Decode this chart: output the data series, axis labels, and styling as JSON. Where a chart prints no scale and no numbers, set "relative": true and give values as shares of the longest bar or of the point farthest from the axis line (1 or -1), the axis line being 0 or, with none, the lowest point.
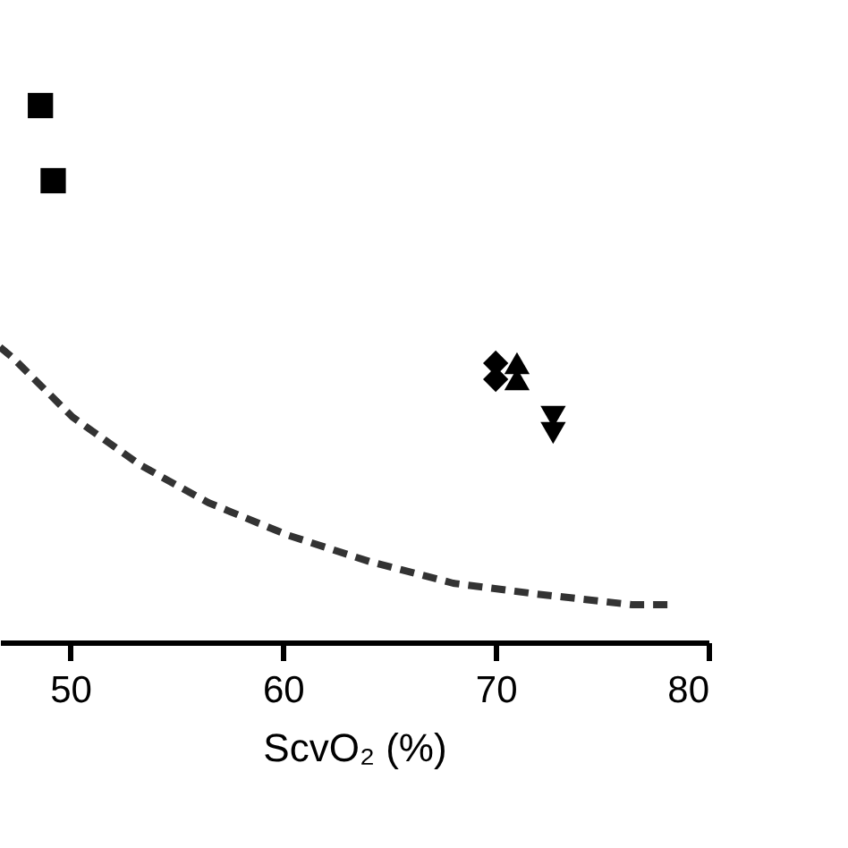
{
  "chart_data": {
    "type": "scatter",
    "xlabel": "ScvO₂ (%)",
    "relative": true,
    "xlim": [
      46.7,
      80
    ],
    "xticks": [
      50,
      60,
      70,
      80
    ],
    "grid": false,
    "series": [
      {
        "marker": "square",
        "color": "#000000",
        "x": [
          48.6,
          49.2
        ],
        "values": [
          1.0,
          0.86
        ]
      },
      {
        "marker": "diamond",
        "color": "#000000",
        "x": [
          70.0,
          70.0
        ],
        "values": [
          0.52,
          0.49
        ]
      },
      {
        "marker": "triangle",
        "color": "#000000",
        "x": [
          71.0,
          71.0
        ],
        "values": [
          0.52,
          0.49
        ]
      },
      {
        "marker": "triangle-down",
        "color": "#000000",
        "x": [
          72.7,
          72.7
        ],
        "values": [
          0.42,
          0.39
        ]
      },
      {
        "type": "line",
        "marker": "none",
        "line_style": "dashed",
        "color": "#333333",
        "x": [
          46.7,
          47.3,
          50.1,
          53.3,
          56.5,
          60.2,
          64.1,
          68.0,
          71.9,
          76.4,
          78.4
        ],
        "values": [
          0.55,
          0.53,
          0.42,
          0.33,
          0.26,
          0.2,
          0.15,
          0.11,
          0.09,
          0.07,
          0.07
        ]
      }
    ]
  }
}
